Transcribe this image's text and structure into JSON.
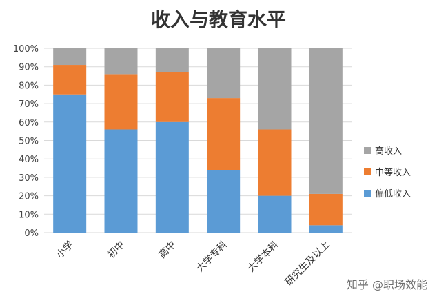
{
  "chart_data": {
    "type": "bar",
    "stacked": true,
    "normalized": true,
    "title": "收入与教育水平",
    "categories": [
      "小学",
      "初中",
      "高中",
      "大学专科",
      "大学本科",
      "研究生及以上"
    ],
    "series": [
      {
        "name": "偏低收入",
        "color": "#5b9bd5",
        "values": [
          75,
          56,
          60,
          34,
          20,
          4
        ]
      },
      {
        "name": "中等收入",
        "color": "#ed7d31",
        "values": [
          16,
          30,
          27,
          39,
          36,
          17
        ]
      },
      {
        "name": "高收入",
        "color": "#a5a5a5",
        "values": [
          9,
          14,
          13,
          27,
          44,
          79
        ]
      }
    ],
    "yticks": [
      "0%",
      "10%",
      "20%",
      "30%",
      "40%",
      "50%",
      "60%",
      "70%",
      "80%",
      "90%",
      "100%"
    ],
    "ylim": [
      0,
      100
    ],
    "grid": true,
    "legend_position": "right",
    "legend_order": [
      "高收入",
      "中等收入",
      "偏低收入"
    ]
  },
  "watermark": "知乎 @职场效能"
}
